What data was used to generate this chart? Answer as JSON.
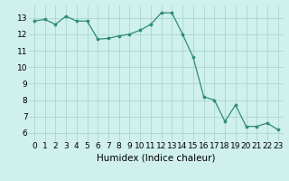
{
  "x": [
    0,
    1,
    2,
    3,
    4,
    5,
    6,
    7,
    8,
    9,
    10,
    11,
    12,
    13,
    14,
    15,
    16,
    17,
    18,
    19,
    20,
    21,
    22,
    23
  ],
  "y": [
    12.8,
    12.9,
    12.6,
    13.1,
    12.8,
    12.8,
    11.7,
    11.75,
    11.9,
    12.0,
    12.25,
    12.6,
    13.3,
    13.3,
    12.0,
    10.6,
    8.2,
    8.0,
    6.7,
    7.7,
    6.4,
    6.4,
    6.6,
    6.2
  ],
  "line_color": "#2e8b7a",
  "marker_color": "#2e8b7a",
  "bg_color": "#cff0ec",
  "grid_color": "#aad6d0",
  "xlabel": "Humidex (Indice chaleur)",
  "xlim": [
    -0.5,
    23.5
  ],
  "ylim": [
    5.5,
    13.75
  ],
  "yticks": [
    6,
    7,
    8,
    9,
    10,
    11,
    12,
    13
  ],
  "xticks": [
    0,
    1,
    2,
    3,
    4,
    5,
    6,
    7,
    8,
    9,
    10,
    11,
    12,
    13,
    14,
    15,
    16,
    17,
    18,
    19,
    20,
    21,
    22,
    23
  ],
  "xtick_labels": [
    "0",
    "1",
    "2",
    "3",
    "4",
    "5",
    "6",
    "7",
    "8",
    "9",
    "10",
    "11",
    "12",
    "13",
    "14",
    "15",
    "16",
    "17",
    "18",
    "19",
    "20",
    "21",
    "22",
    "23"
  ],
  "tick_fontsize": 6.5,
  "xlabel_fontsize": 7.5
}
